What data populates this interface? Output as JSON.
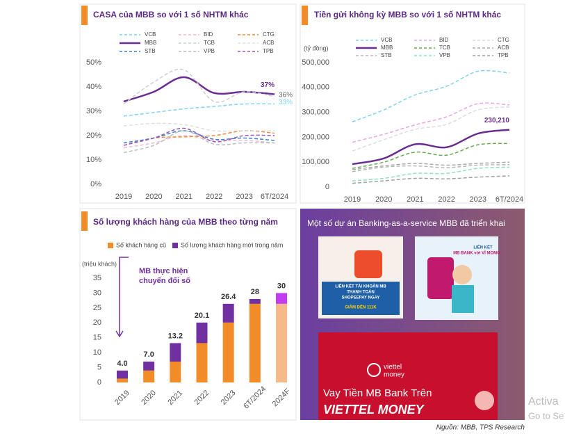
{
  "chart_data": [
    {
      "type": "line",
      "title": "CASA của MBB so với 1 số NHTM khác",
      "categories": [
        "2019",
        "2020",
        "2021",
        "2022",
        "2023",
        "6T/2024"
      ],
      "ylim": [
        0,
        50
      ],
      "yticks": [
        {
          "value": 0,
          "label": "0%"
        },
        {
          "value": 10,
          "label": "10%"
        },
        {
          "value": 20,
          "label": "20%"
        },
        {
          "value": 30,
          "label": "30%"
        },
        {
          "value": 40,
          "label": "40%"
        },
        {
          "value": 50,
          "label": "50%"
        }
      ],
      "series": [
        {
          "name": "VCB",
          "color": "#7fd3ef",
          "dashed": true,
          "values": [
            28,
            29.5,
            31,
            32,
            33,
            33
          ],
          "value_labels": [
            null,
            null,
            null,
            null,
            null,
            "33%"
          ]
        },
        {
          "name": "BID",
          "color": "#f4b8d4",
          "dashed": true,
          "values": [
            15,
            17,
            20,
            18,
            18,
            17
          ]
        },
        {
          "name": "CTG",
          "color": "#f08a3c",
          "dashed": true,
          "values": [
            16,
            19,
            19.5,
            20,
            22,
            21
          ]
        },
        {
          "name": "MBB",
          "color": "#6a2c91",
          "dashed": false,
          "values": [
            34,
            38,
            44,
            37.5,
            38,
            37
          ],
          "value_labels": [
            null,
            null,
            null,
            null,
            null,
            "37%"
          ]
        },
        {
          "name": "TCB",
          "color": "#cfcfcf",
          "dashed": true,
          "values": [
            33,
            42,
            47,
            34,
            38,
            36
          ],
          "value_labels": [
            null,
            null,
            null,
            null,
            null,
            "36%"
          ]
        },
        {
          "name": "ACB",
          "color": "#e0e0e0",
          "dashed": true,
          "values": [
            24,
            25,
            24.5,
            22,
            22,
            22
          ]
        },
        {
          "name": "STB",
          "color": "#3a7fd5",
          "dashed": true,
          "values": [
            17,
            19,
            22,
            18.5,
            19,
            18
          ]
        },
        {
          "name": "VPB",
          "color": "#bdbdbd",
          "dashed": true,
          "values": [
            13,
            16,
            22,
            16.5,
            17,
            17
          ]
        },
        {
          "name": "TPB",
          "color": "#9b59b6",
          "dashed": true,
          "values": [
            16,
            19,
            23,
            17.5,
            20,
            20
          ]
        }
      ]
    },
    {
      "type": "line",
      "title": "Tiền gửi không kỳ MBB so với 1 số NHTM khác",
      "y_label": "(tỷ đồng)",
      "categories": [
        "2019",
        "2020",
        "2021",
        "2022",
        "2023",
        "6T/2024"
      ],
      "ylim": [
        0,
        500000
      ],
      "yticks": [
        0,
        {
          "value": 100000,
          "label": "100,000"
        },
        {
          "value": 200000,
          "label": "200,000"
        },
        {
          "value": 300000,
          "label": "300,000"
        },
        {
          "value": 400000,
          "label": "400,000"
        },
        {
          "value": 500000,
          "label": "500,000"
        }
      ],
      "series": [
        {
          "name": "VCB",
          "color": "#7fd3ef",
          "dashed": true,
          "values": [
            262000,
            310000,
            370000,
            405000,
            465000,
            458000
          ]
        },
        {
          "name": "BID",
          "color": "#e9a6e0",
          "dashed": true,
          "values": [
            180000,
            212000,
            250000,
            282000,
            335000,
            330000
          ]
        },
        {
          "name": "CTG",
          "color": "#dcdcdc",
          "dashed": true,
          "values": [
            145000,
            190000,
            232000,
            252000,
            310000,
            322000
          ]
        },
        {
          "name": "MBB",
          "color": "#6a2c91",
          "dashed": false,
          "values": [
            92000,
            115000,
            172000,
            160000,
            215000,
            230210
          ],
          "value_labels": [
            null,
            null,
            null,
            null,
            null,
            "230,210"
          ]
        },
        {
          "name": "TCB",
          "color": "#6aa84f",
          "dashed": true,
          "values": [
            75000,
            100000,
            140000,
            128000,
            170000,
            175000
          ]
        },
        {
          "name": "ACB",
          "color": "#a8a8a8",
          "dashed": true,
          "values": [
            70000,
            85000,
            95000,
            88000,
            95000,
            100000
          ]
        },
        {
          "name": "STB",
          "color": "#b8b8b8",
          "dashed": true,
          "values": [
            62000,
            80000,
            85000,
            78000,
            88000,
            90000
          ]
        },
        {
          "name": "VPB",
          "color": "#90e0c0",
          "dashed": true,
          "values": [
            25000,
            35000,
            55000,
            55000,
            75000,
            80000
          ]
        },
        {
          "name": "TPB",
          "color": "#a0a0a0",
          "dashed": true,
          "values": [
            15000,
            25000,
            35000,
            33000,
            40000,
            45000
          ]
        }
      ]
    },
    {
      "type": "bar",
      "stacked": true,
      "title": "Số lượng khách hàng của MBB theo từng năm",
      "y_label": "(triệu khách)",
      "annotation_lines": [
        "MB thực hiện",
        "chuyển đổi số"
      ],
      "categories": [
        "2019",
        "2020",
        "2021",
        "2022",
        "2023",
        "6T/2024",
        "2024F"
      ],
      "ylim": [
        0,
        35
      ],
      "yticks": [
        0,
        5,
        10,
        15,
        20,
        25,
        30,
        35
      ],
      "total_labels": [
        "4.0",
        "7.0",
        "13.2",
        "20.1",
        "26.4",
        "28",
        "30"
      ],
      "series": [
        {
          "name": "Số khách hàng cũ",
          "color": "#f28c28",
          "colors": [
            "#f28c28",
            "#f28c28",
            "#f28c28",
            "#f28c28",
            "#f28c28",
            "#f28c28",
            "#f6b98a"
          ],
          "values": [
            1.3,
            4.0,
            7.0,
            13.2,
            20.1,
            26.4,
            26.4
          ]
        },
        {
          "name": "Số lượng khách hàng mới trong năm",
          "color": "#7030a0",
          "colors": [
            "#7030a0",
            "#7030a0",
            "#7030a0",
            "#7030a0",
            "#7030a0",
            "#7030a0",
            "#c33cf2"
          ],
          "values": [
            2.7,
            3.0,
            6.2,
            6.9,
            6.3,
            1.6,
            3.6
          ]
        }
      ]
    }
  ],
  "banking_as_a_service": {
    "title": "Một số dự án Banking-as-a-service MBB đã triển khai",
    "ad_texts": [
      "LIÊN KẾT TÀI KHOẢN MB",
      "THANH TOÁN",
      "SHOPEEPAY NGAY",
      "GIẢM ĐẾN 111K",
      "LIÊN KẾT",
      "MB BANK với VÍ MOMO",
      "viettel",
      "money",
      "Vay Tiền MB Bank Trên",
      "VIETTEL MONEY"
    ]
  },
  "source": "Nguồn: MBB, TPS Research",
  "watermark": [
    "Activa",
    "Go to Se"
  ]
}
